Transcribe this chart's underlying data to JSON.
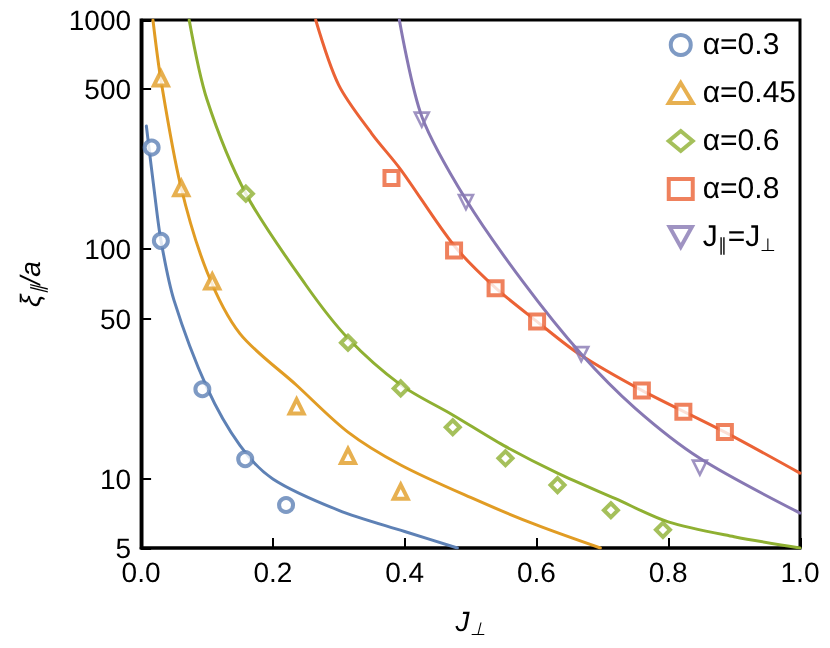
{
  "chart_data": {
    "type": "scatter",
    "xlabel": "J$_{⊥}$",
    "ylabel": "ξ$_{∥}$/a",
    "xlim": [
      0,
      1
    ],
    "ylim": [
      5,
      1000
    ],
    "log": "y",
    "grid": false,
    "legend": "top right",
    "xticks": [
      {
        "value": 0,
        "label": "0.0"
      },
      {
        "value": 0.2,
        "label": "0.2"
      },
      {
        "value": 0.4,
        "label": "0.4"
      },
      {
        "value": 0.6,
        "label": "0.6"
      },
      {
        "value": 0.8,
        "label": "0.8"
      },
      {
        "value": 1,
        "label": "1.0"
      }
    ],
    "yticks": [
      5,
      10,
      50,
      100,
      500,
      1000
    ],
    "series": [
      {
        "name": "α=0.3",
        "color": "#5e81b5",
        "marker": "circle",
        "x": [
          0.016,
          0.03,
          0.093,
          0.158,
          0.22
        ],
        "values": [
          278,
          109,
          24.6,
          12.2,
          7.7
        ]
      },
      {
        "name": "α=0.45",
        "color": "#e19c24",
        "marker": "triangle",
        "x": [
          0.03,
          0.061,
          0.108,
          0.236,
          0.314,
          0.394
        ],
        "values": [
          556,
          185,
          72.5,
          20.7,
          12.6,
          8.8
        ]
      },
      {
        "name": "α=0.6",
        "color": "#8fb032",
        "marker": "diamond",
        "x": [
          0.159,
          0.314,
          0.394,
          0.473,
          0.553,
          0.632,
          0.713,
          0.792
        ],
        "values": [
          175,
          39.2,
          24.8,
          16.8,
          12.3,
          9.4,
          7.3,
          6.0
        ]
      },
      {
        "name": "α=0.8",
        "color": "#eb6235",
        "marker": "square",
        "x": [
          0.38,
          0.475,
          0.538,
          0.601,
          0.76,
          0.823,
          0.886
        ],
        "values": [
          205,
          99,
          67.8,
          48.5,
          24.3,
          19.6,
          16.0
        ]
      },
      {
        "name": "J$_{∥}$=J$_{⊥}$",
        "color": "#8778b3",
        "marker": "triangle-down",
        "x": [
          0.426,
          0.493,
          0.668,
          0.848
        ],
        "values": [
          368,
          161,
          35,
          11.2
        ]
      },
      {
        "type": "line",
        "color": "#5e81b5",
        "marker": "none",
        "line_style": "solid",
        "x": [
          0.008,
          0.02,
          0.03,
          0.05,
          0.1,
          0.15,
          0.2,
          0.3,
          0.4,
          0.48
        ],
        "values": [
          345,
          180,
          110,
          60,
          25,
          14,
          10,
          7.3,
          5.9,
          5
        ]
      },
      {
        "type": "line",
        "color": "#e19c24",
        "marker": "none",
        "line_style": "solid",
        "x": [
          0.018,
          0.03,
          0.06,
          0.1,
          0.15,
          0.236,
          0.314,
          0.394,
          0.5,
          0.6,
          0.697
        ],
        "values": [
          1000,
          550,
          190,
          80,
          43,
          25.6,
          16,
          11.5,
          8.3,
          6.3,
          5
        ]
      },
      {
        "type": "line",
        "color": "#8fb032",
        "marker": "none",
        "line_style": "solid",
        "x": [
          0.073,
          0.1,
          0.159,
          0.25,
          0.314,
          0.394,
          0.473,
          0.55,
          0.632,
          0.72,
          0.8,
          0.9,
          1.0
        ],
        "values": [
          1000,
          450,
          175,
          70,
          41,
          25.7,
          19,
          14,
          10.6,
          8.2,
          6.5,
          5.6,
          5
        ]
      },
      {
        "type": "line",
        "color": "#eb6235",
        "marker": "none",
        "line_style": "solid",
        "x": [
          0.265,
          0.3,
          0.35,
          0.394,
          0.475,
          0.538,
          0.601,
          0.665,
          0.76,
          0.886,
          1.0
        ],
        "values": [
          1000,
          520,
          320,
          223,
          104,
          68,
          48.5,
          35,
          24.3,
          16,
          10.6
        ]
      },
      {
        "type": "line",
        "color": "#8778b3",
        "marker": "none",
        "line_style": "solid",
        "x": [
          0.392,
          0.426,
          0.493,
          0.58,
          0.668,
          0.75,
          0.848,
          1.0
        ],
        "values": [
          1000,
          380,
          165,
          72,
          35,
          20.3,
          12.3,
          7.1
        ]
      }
    ]
  }
}
